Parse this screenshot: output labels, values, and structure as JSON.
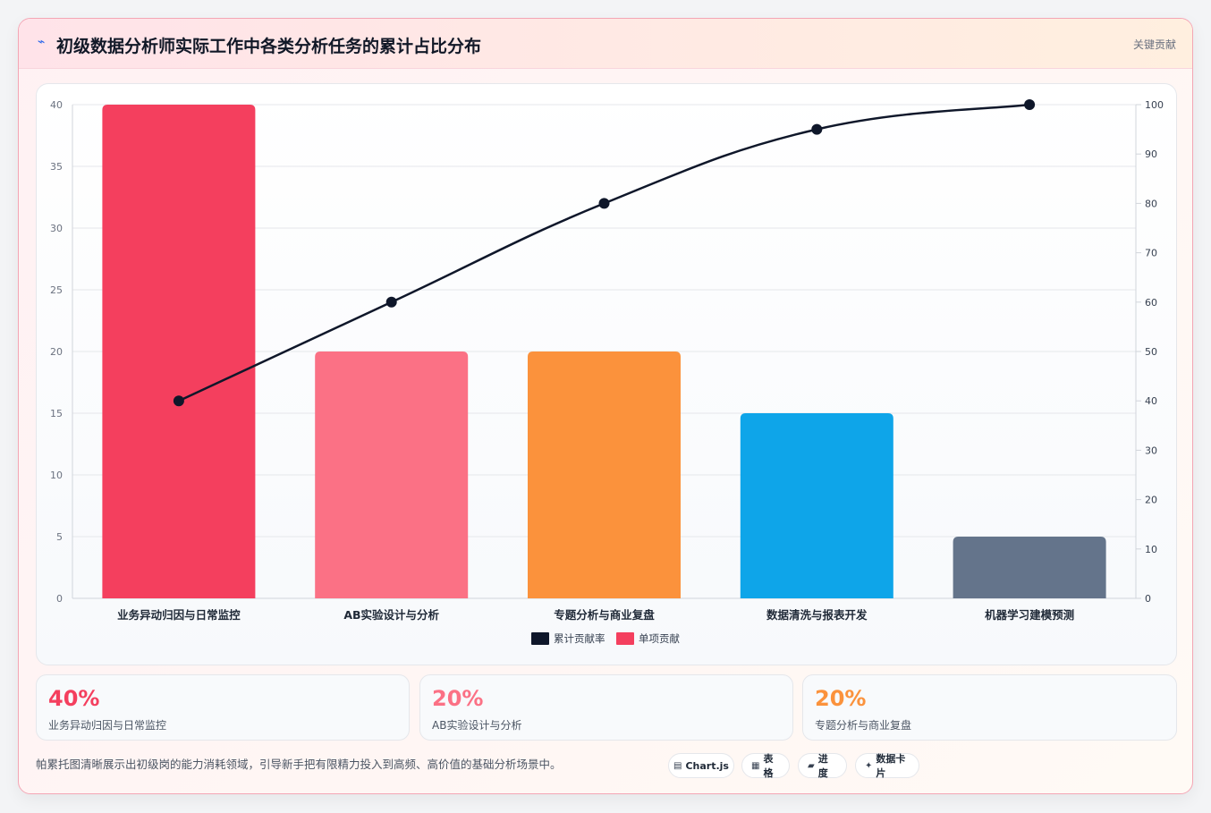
{
  "header": {
    "title": "初级数据分析师实际工作中各类分析任务的累计占比分布",
    "tag": "关键贡献"
  },
  "chart_data": {
    "type": "bar",
    "categories": [
      "业务异动归因与日常监控",
      "AB实验设计与分析",
      "专题分析与商业复盘",
      "数据清洗与报表开发",
      "机器学习建模预测"
    ],
    "series": [
      {
        "name": "单项贡献",
        "type": "bar",
        "axis": "left",
        "values": [
          40,
          20,
          20,
          15,
          5
        ],
        "colors": [
          "#f43f5e",
          "#fb7185",
          "#fb923c",
          "#0ea5e9",
          "#64748b"
        ]
      },
      {
        "name": "累计贡献率",
        "type": "line",
        "axis": "right",
        "values": [
          40,
          60,
          80,
          95,
          100
        ],
        "color": "#0f172a"
      }
    ],
    "ylim": [
      0,
      40
    ],
    "y_ticks": [
      0,
      5,
      10,
      15,
      20,
      25,
      30,
      35,
      40
    ],
    "y2lim": [
      0,
      100
    ],
    "y2_ticks": [
      0,
      10,
      20,
      30,
      40,
      50,
      60,
      70,
      80,
      90,
      100
    ],
    "legend_position": "bottom",
    "grid": true
  },
  "stats": [
    {
      "value": "40%",
      "label": "业务异动归因与日常监控",
      "color": "#f43f5e"
    },
    {
      "value": "20%",
      "label": "AB实验设计与分析",
      "color": "#fb7185"
    },
    {
      "value": "20%",
      "label": "专题分析与商业复盘",
      "color": "#fb923c"
    }
  ],
  "footer": {
    "note": "帕累托图清晰展示出初级岗的能力消耗领域，引导新手把有限精力投入到高频、高价值的基础分析场景中。",
    "pills": [
      {
        "icon": "▤",
        "icon_name": "chart-icon",
        "label": "Chart.js"
      },
      {
        "icon": "▦",
        "icon_name": "table-icon",
        "label": "表格"
      },
      {
        "icon": "▰",
        "icon_name": "progress-icon",
        "label": "进度"
      },
      {
        "icon": "✦",
        "icon_name": "card-icon",
        "label": "数据卡片"
      }
    ]
  }
}
